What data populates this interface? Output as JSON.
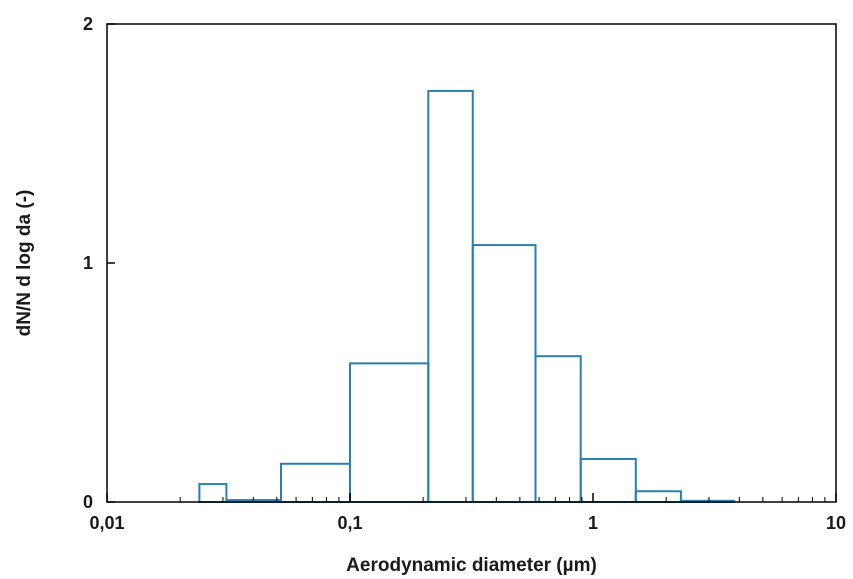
{
  "chart_data": {
    "type": "bar",
    "title": "",
    "xlabel": "Aerodynamic diameter (µm)",
    "ylabel": "dN/N d log da (-)",
    "x_scale": "log",
    "xlim": [
      0.01,
      10
    ],
    "ylim": [
      0,
      2
    ],
    "x_ticks": [
      {
        "value": 0.01,
        "label": "0,01"
      },
      {
        "value": 0.1,
        "label": "0,1"
      },
      {
        "value": 1,
        "label": "1"
      },
      {
        "value": 10,
        "label": "10"
      }
    ],
    "y_ticks": [
      {
        "value": 0,
        "label": "0"
      },
      {
        "value": 1,
        "label": "1"
      },
      {
        "value": 2,
        "label": "2"
      }
    ],
    "grid": false,
    "bar_style": {
      "fill": "none",
      "stroke": "#2a7fb0"
    },
    "bins": [
      {
        "x0": 0.024,
        "x1": 0.031,
        "value": 0.075
      },
      {
        "x0": 0.031,
        "x1": 0.052,
        "value": 0.008
      },
      {
        "x0": 0.052,
        "x1": 0.1,
        "value": 0.16
      },
      {
        "x0": 0.1,
        "x1": 0.21,
        "value": 0.58
      },
      {
        "x0": 0.21,
        "x1": 0.32,
        "value": 1.72
      },
      {
        "x0": 0.32,
        "x1": 0.58,
        "value": 1.075
      },
      {
        "x0": 0.58,
        "x1": 0.89,
        "value": 0.61
      },
      {
        "x0": 0.89,
        "x1": 1.5,
        "value": 0.18
      },
      {
        "x0": 1.5,
        "x1": 2.3,
        "value": 0.045
      },
      {
        "x0": 2.3,
        "x1": 3.8,
        "value": 0.005
      }
    ]
  }
}
